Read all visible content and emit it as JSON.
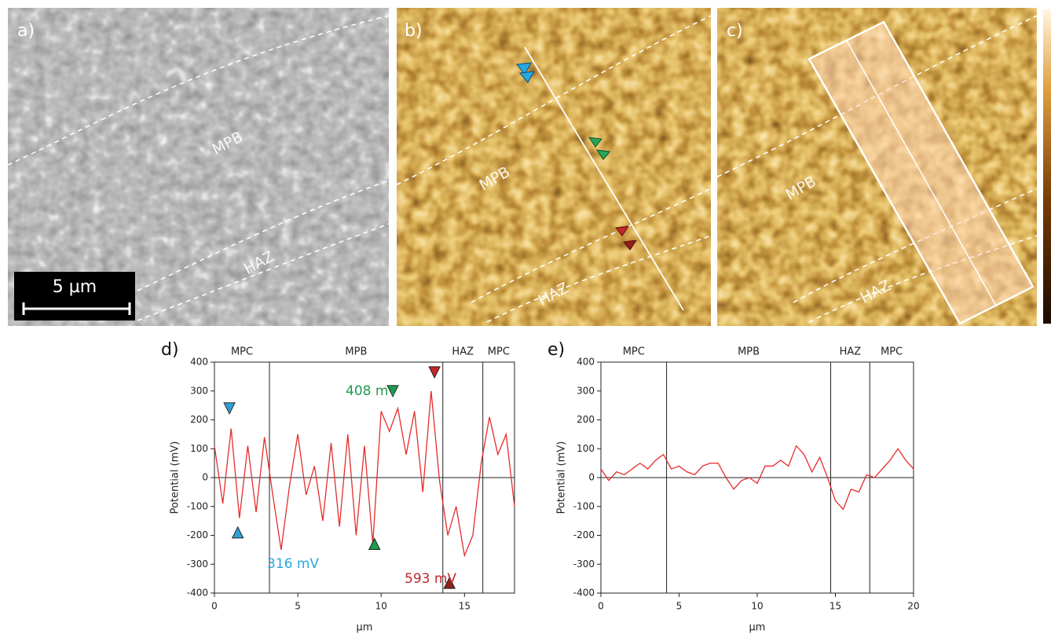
{
  "images": [
    {
      "label": "a)",
      "regions": [
        "MPB",
        "HAZ"
      ],
      "scalebar": "5 µm"
    },
    {
      "label": "b)",
      "regions": [
        "MPB",
        "HAZ"
      ]
    },
    {
      "label": "c)",
      "regions": [
        "MPB",
        "HAZ"
      ]
    }
  ],
  "chart_data": [
    {
      "type": "line",
      "panel_label": "d)",
      "xlabel": "µm",
      "ylabel": "Potential (mV)",
      "color": "#e62b2b",
      "xlim": [
        0,
        18
      ],
      "ylim": [
        -400,
        400
      ],
      "xticks": [
        0,
        5,
        10,
        15
      ],
      "yticks": [
        -400,
        -300,
        -200,
        -100,
        0,
        100,
        200,
        300,
        400
      ],
      "boundaries": [
        3.3,
        13.7,
        16.1
      ],
      "regions": [
        "MPC",
        "MPB",
        "HAZ",
        "MPC"
      ],
      "x": [
        0,
        0.5,
        1,
        1.5,
        2,
        2.5,
        3,
        3.5,
        4,
        4.5,
        5,
        5.5,
        6,
        6.5,
        7,
        7.5,
        8,
        8.5,
        9,
        9.5,
        10,
        10.5,
        11,
        11.5,
        12,
        12.5,
        13,
        13.5,
        14,
        14.5,
        15,
        15.5,
        16,
        16.5,
        17,
        17.5,
        18
      ],
      "values": [
        110,
        -90,
        170,
        -140,
        110,
        -120,
        140,
        -60,
        -250,
        -30,
        150,
        -60,
        40,
        -150,
        120,
        -170,
        150,
        -200,
        110,
        -230,
        230,
        160,
        240,
        80,
        230,
        -50,
        300,
        -10,
        -200,
        -100,
        -270,
        -200,
        50,
        210,
        80,
        150,
        -100
      ],
      "markers": [
        {
          "x": 0.9,
          "y": 240,
          "direction": "down",
          "color": "#2f9fd8"
        },
        {
          "x": 1.4,
          "y": -190,
          "direction": "up",
          "color": "#2f9fd8"
        },
        {
          "x": 10.7,
          "y": 300,
          "direction": "down",
          "color": "#1f9a4e"
        },
        {
          "x": 9.6,
          "y": -230,
          "direction": "up",
          "color": "#1f9a4e"
        },
        {
          "x": 13.2,
          "y": 365,
          "direction": "down",
          "color": "#c0282a"
        },
        {
          "x": 14.1,
          "y": -365,
          "direction": "up",
          "color": "#8e1f1f"
        }
      ],
      "annotations": [
        {
          "text": "316 mV",
          "color": "#27a8e0"
        },
        {
          "text": "408 mV",
          "color": "#1f9a4e"
        },
        {
          "text": "593 mV",
          "color": "#c0282a"
        }
      ]
    },
    {
      "type": "line",
      "panel_label": "e)",
      "xlabel": "µm",
      "ylabel": "Potential (mV)",
      "color": "#e62b2b",
      "xlim": [
        0,
        20
      ],
      "ylim": [
        -400,
        400
      ],
      "xticks": [
        0,
        5,
        10,
        15,
        20
      ],
      "yticks": [
        -400,
        -300,
        -200,
        -100,
        0,
        100,
        200,
        300,
        400
      ],
      "boundaries": [
        4.2,
        14.7,
        17.2
      ],
      "regions": [
        "MPC",
        "MPB",
        "HAZ",
        "MPC"
      ],
      "x": [
        0,
        0.5,
        1,
        1.5,
        2,
        2.5,
        3,
        3.5,
        4,
        4.5,
        5,
        5.5,
        6,
        6.5,
        7,
        7.5,
        8,
        8.5,
        9,
        9.5,
        10,
        10.5,
        11,
        11.5,
        12,
        12.5,
        13,
        13.5,
        14,
        14.5,
        15,
        15.5,
        16,
        16.5,
        17,
        17.5,
        18,
        18.5,
        19,
        19.5,
        20
      ],
      "values": [
        30,
        -10,
        20,
        10,
        30,
        50,
        30,
        60,
        80,
        30,
        40,
        20,
        10,
        40,
        50,
        50,
        0,
        -40,
        -10,
        0,
        -20,
        40,
        40,
        60,
        40,
        110,
        80,
        20,
        70,
        0,
        -80,
        -110,
        -40,
        -50,
        10,
        0,
        30,
        60,
        100,
        60,
        30
      ]
    }
  ]
}
